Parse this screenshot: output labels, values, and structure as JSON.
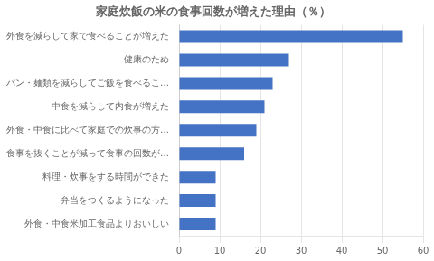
{
  "chart_data": {
    "type": "bar",
    "orientation": "horizontal",
    "title": "家庭炊飯の米の食事回数が増えた理由（％）",
    "categories": [
      "外食を減らして家で食べることが増えた",
      "健康のため",
      "パン・麺類を減らしてご飯を食べるこ…",
      "中食を減らして内食が増えた",
      "外食・中食に比べて家庭での炊事の方…",
      "食事を抜くことが減って食事の回数が…",
      "料理・炊事をする時間ができた",
      "弁当をつくるようになった",
      "外食・中食米加工食品よりおいしい"
    ],
    "values": [
      55,
      27,
      23,
      21,
      19,
      16,
      9,
      9,
      9
    ],
    "color": "#4472C4",
    "xlim": [
      0,
      60
    ],
    "xticks": [
      0,
      10,
      20,
      30,
      40,
      50,
      60
    ],
    "grid": true
  }
}
